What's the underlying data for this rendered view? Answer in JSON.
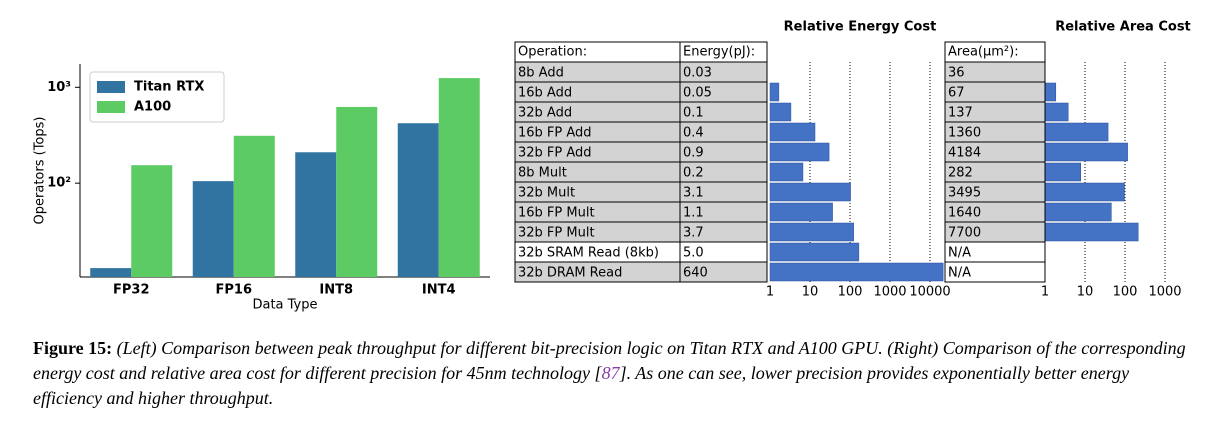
{
  "chart_data": [
    {
      "type": "bar",
      "orientation": "vertical",
      "log_y": true,
      "xlabel": "Data Type",
      "ylabel": "Operators (Tops)",
      "categories": [
        "FP32",
        "FP16",
        "INT8",
        "INT4"
      ],
      "series": [
        {
          "name": "Titan RTX",
          "color": "#3274a1",
          "values": [
            13,
            105,
            210,
            422
          ]
        },
        {
          "name": "A100",
          "color": "#5ccb63",
          "values": [
            154,
            312,
            624,
            1248
          ]
        }
      ],
      "ylim": [
        10.5,
        1750
      ],
      "yticks": [
        {
          "value": 100,
          "label": "10²"
        },
        {
          "value": 1000,
          "label": "10³"
        }
      ],
      "legend": "upper-left"
    },
    {
      "type": "bar",
      "orientation": "horizontal",
      "log_x": true,
      "grid": true,
      "title": "Relative Energy Cost",
      "color": "#4472c4",
      "categories": [
        "8b Add",
        "16b Add",
        "32b Add",
        "16b FP Add",
        "32b FP Add",
        "8b Mult",
        "32b Mult",
        "16b FP Mult",
        "32b FP Mult",
        "32b SRAM Read (8kb)",
        "32b DRAM Read"
      ],
      "values": [
        0.03,
        0.05,
        0.1,
        0.4,
        0.9,
        0.2,
        3.1,
        1.1,
        3.7,
        5.0,
        640
      ],
      "value_labels": [
        "0.03",
        "0.05",
        "0.1",
        "0.4",
        "0.9",
        "0.2",
        "3.1",
        "1.1",
        "3.7",
        "5.0",
        "640"
      ],
      "xlim": [
        0.03,
        300
      ],
      "xticks": [
        {
          "value": 0.03,
          "label": "1"
        },
        {
          "value": 0.3,
          "label": "10"
        },
        {
          "value": 3,
          "label": "100"
        },
        {
          "value": 30,
          "label": "1000"
        },
        {
          "value": 300,
          "label": "10000"
        }
      ]
    },
    {
      "type": "bar",
      "orientation": "horizontal",
      "log_x": true,
      "grid": true,
      "title": "Relative Area Cost",
      "color": "#4472c4",
      "values": [
        36,
        67,
        137,
        1360,
        4184,
        282,
        3495,
        1640,
        7700,
        null,
        null
      ],
      "value_labels": [
        "36",
        "67",
        "137",
        "1360",
        "4184",
        "282",
        "3495",
        "1640",
        "7700",
        "N/A",
        "N/A"
      ],
      "xlim": [
        36,
        36000
      ],
      "xticks": [
        {
          "value": 36,
          "label": "1"
        },
        {
          "value": 360,
          "label": "10"
        },
        {
          "value": 3600,
          "label": "100"
        },
        {
          "value": 36000,
          "label": "1000"
        }
      ]
    }
  ],
  "table": {
    "headers": [
      "Operation:",
      "Energy(pJ):",
      "Area(μm²):"
    ]
  },
  "caption": {
    "label": "Figure 15:",
    "text_before": "(Left) Comparison between peak throughput for different bit-precision logic on Titan RTX and A100 GPU. (Right) Comparison of the corresponding energy cost and relative area cost for different precision for 45nm technology [",
    "ref": "87",
    "text_after": "]. As one can see, lower precision provides exponentially better energy efficiency and higher throughput."
  }
}
